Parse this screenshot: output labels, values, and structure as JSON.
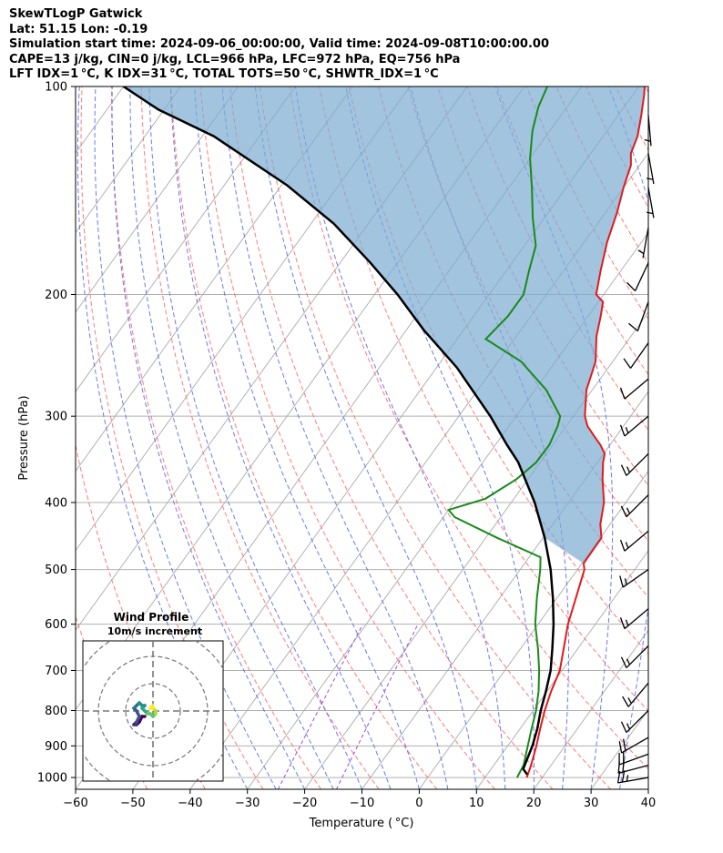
{
  "header": {
    "line1": "SkewTLogP Gatwick",
    "line2": "Lat: 51.15   Lon: -0.19",
    "line3": "Simulation start time: 2024-09-06_00:00:00, Valid time: 2024-09-08T10:00:00.00",
    "line4": "CAPE=13 j/kg, CIN=0 j/kg, LCL=966 hPa, LFC=972 hPa, EQ=756 hPa",
    "line5": "LFT IDX=1 °C, K IDX=31 °C, TOTAL TOTS=50 °C, SHWTR_IDX=1 °C"
  },
  "colors": {
    "temperature": "#e31a1c",
    "dewpoint": "#1a8a1a",
    "parcel": "#000000",
    "cape_fill": "#7eadd3",
    "dry_adiabat": "#ff6b6b",
    "moist_adiabat": "#5a6cf0",
    "isotherm": "#aaaaaa",
    "mixing_ratio": "#9b4bd6"
  },
  "chart_data": {
    "type": "line",
    "title": "SkewTLogP Gatwick",
    "xlabel": "Temperature ( °C)",
    "ylabel": "Pressure (hPa)",
    "xlim": [
      -60,
      40
    ],
    "ylim": [
      1040,
      100
    ],
    "x_ticks": [
      "−60",
      "−50",
      "−40",
      "−30",
      "−20",
      "−10",
      "0",
      "10",
      "20",
      "30",
      "40"
    ],
    "y_ticks": [
      "100",
      "200",
      "300",
      "400",
      "500",
      "600",
      "700",
      "800",
      "900",
      "1000"
    ],
    "series": [
      {
        "name": "Temperature",
        "points": [
          [
            17.3,
            1000
          ],
          [
            16.5,
            960
          ],
          [
            15.0,
            900
          ],
          [
            13.5,
            850
          ],
          [
            12.0,
            800
          ],
          [
            10.7,
            750
          ],
          [
            9.6,
            700
          ],
          [
            7.5,
            650
          ],
          [
            5.2,
            600
          ],
          [
            3.3,
            550
          ],
          [
            1.2,
            500
          ],
          [
            0.3,
            490
          ],
          [
            0.2,
            450
          ],
          [
            -1.7,
            430
          ],
          [
            -3.8,
            400
          ],
          [
            -7.0,
            370
          ],
          [
            -9.0,
            350
          ],
          [
            -9.8,
            340
          ],
          [
            -11.7,
            330
          ],
          [
            -14.0,
            320
          ],
          [
            -16.3,
            310
          ],
          [
            -18.0,
            300
          ],
          [
            -21,
            275
          ],
          [
            -23,
            250
          ],
          [
            -26,
            230
          ],
          [
            -27.8,
            215
          ],
          [
            -29.2,
            205
          ],
          [
            -31.3,
            200
          ],
          [
            -33.5,
            185
          ],
          [
            -36,
            168
          ],
          [
            -38,
            152
          ],
          [
            -40,
            140
          ],
          [
            -41.5,
            130
          ],
          [
            -43,
            125
          ],
          [
            -44,
            118
          ],
          [
            -46,
            110
          ],
          [
            -48,
            103
          ],
          [
            -49,
            100
          ]
        ]
      },
      {
        "name": "Dewpoint",
        "points": [
          [
            15.6,
            1000
          ],
          [
            15.2,
            960
          ],
          [
            13.5,
            900
          ],
          [
            12.0,
            850
          ],
          [
            10.5,
            800
          ],
          [
            8.5,
            750
          ],
          [
            6.0,
            700
          ],
          [
            3.0,
            650
          ],
          [
            -0.5,
            600
          ],
          [
            -3.5,
            550
          ],
          [
            -6.5,
            500
          ],
          [
            -8.0,
            480
          ],
          [
            -18.0,
            450
          ],
          [
            -28.0,
            420
          ],
          [
            -30.0,
            410
          ],
          [
            -25.0,
            395
          ],
          [
            -22.0,
            370
          ],
          [
            -20.7,
            350
          ],
          [
            -20.6,
            330
          ],
          [
            -21.5,
            310
          ],
          [
            -22.3,
            300
          ],
          [
            -28,
            275
          ],
          [
            -36,
            250
          ],
          [
            -45,
            232
          ],
          [
            -44,
            215
          ],
          [
            -44,
            200
          ],
          [
            -46,
            185
          ],
          [
            -48,
            170
          ],
          [
            -52,
            155
          ],
          [
            -56,
            140
          ],
          [
            -60,
            127
          ],
          [
            -63,
            116
          ],
          [
            -65,
            107
          ],
          [
            -66,
            100
          ]
        ]
      },
      {
        "name": "Parcel",
        "points": [
          [
            17.0,
            990
          ],
          [
            15.6,
            972
          ],
          [
            14.3,
            900
          ],
          [
            13.0,
            850
          ],
          [
            11.3,
            800
          ],
          [
            9.8,
            750
          ],
          [
            8.0,
            700
          ],
          [
            5.5,
            650
          ],
          [
            2.7,
            600
          ],
          [
            -0.7,
            550
          ],
          [
            -4.7,
            500
          ],
          [
            -9.7,
            450
          ],
          [
            -15.9,
            400
          ],
          [
            -23.8,
            350
          ],
          [
            -28.0,
            330
          ],
          [
            -34.5,
            300
          ],
          [
            -46.5,
            255
          ],
          [
            -57.0,
            225
          ],
          [
            -66.0,
            200
          ],
          [
            -74.7,
            180
          ],
          [
            -86.0,
            158
          ],
          [
            -99.0,
            139
          ],
          [
            -118,
            118
          ],
          [
            -131,
            108
          ],
          [
            -140,
            100
          ]
        ]
      }
    ],
    "cape_region": "between temperature and parcel curves from 490 hPa to 100 hPa",
    "background_lines": [
      "dry adiabats",
      "moist adiabats",
      "isotherms",
      "mixing ratio lines"
    ],
    "wind_barbs_kt": [
      {
        "p": 1000,
        "speed": 25,
        "dir": 260
      },
      {
        "p": 960,
        "speed": 20,
        "dir": 255
      },
      {
        "p": 925,
        "speed": 20,
        "dir": 250
      },
      {
        "p": 875,
        "speed": 20,
        "dir": 240
      },
      {
        "p": 800,
        "speed": 15,
        "dir": 225
      },
      {
        "p": 730,
        "speed": 15,
        "dir": 220
      },
      {
        "p": 645,
        "speed": 15,
        "dir": 225
      },
      {
        "p": 570,
        "speed": 15,
        "dir": 230
      },
      {
        "p": 500,
        "speed": 15,
        "dir": 235
      },
      {
        "p": 440,
        "speed": 15,
        "dir": 230
      },
      {
        "p": 390,
        "speed": 15,
        "dir": 225
      },
      {
        "p": 340,
        "speed": 15,
        "dir": 225
      },
      {
        "p": 300,
        "speed": 15,
        "dir": 230
      },
      {
        "p": 265,
        "speed": 10,
        "dir": 230
      },
      {
        "p": 235,
        "speed": 10,
        "dir": 215
      },
      {
        "p": 205,
        "speed": 10,
        "dir": 200
      },
      {
        "p": 180,
        "speed": 10,
        "dir": 205
      },
      {
        "p": 160,
        "speed": 5,
        "dir": 190
      },
      {
        "p": 140,
        "speed": 5,
        "dir": 170
      },
      {
        "p": 125,
        "speed": 5,
        "dir": 170
      },
      {
        "p": 110,
        "speed": 5,
        "dir": 175
      }
    ]
  },
  "hodograph": {
    "title_line1": "Wind Profile",
    "title_line2": "10m/s increment",
    "ring_increment_ms": 10,
    "points_ms": [
      [
        -3,
        -2
      ],
      [
        -4,
        -2
      ],
      [
        -5,
        -4
      ],
      [
        -6,
        -5
      ],
      [
        -7,
        -5
      ],
      [
        -6,
        -4
      ],
      [
        -5,
        -2
      ],
      [
        -6,
        0
      ],
      [
        -7,
        1
      ],
      [
        -6,
        2
      ],
      [
        -5,
        3
      ],
      [
        -4,
        2
      ],
      [
        -3,
        2
      ],
      [
        -4,
        1
      ],
      [
        -3,
        0
      ],
      [
        -2,
        -1
      ],
      [
        -1,
        -1
      ],
      [
        0,
        -2
      ],
      [
        1,
        -1
      ],
      [
        1,
        0
      ],
      [
        0,
        1
      ],
      [
        -1,
        1
      ],
      [
        0,
        2
      ]
    ]
  }
}
